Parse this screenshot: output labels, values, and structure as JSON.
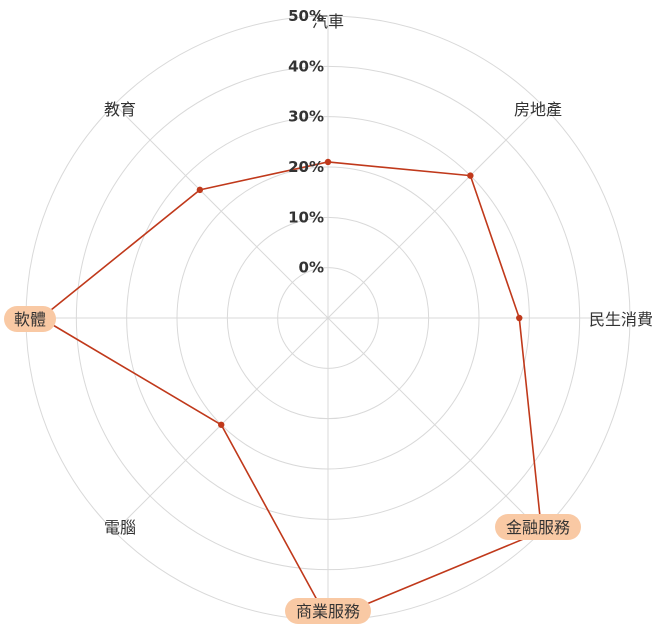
{
  "chart_data": {
    "type": "radar",
    "categories": [
      "汽車",
      "房地產",
      "民生消費",
      "金融服務",
      "商業服務",
      "電腦",
      "軟體",
      "教育"
    ],
    "series": [
      {
        "values": [
          0.21,
          0.3,
          0.28,
          0.5,
          0.5,
          0.2,
          0.47,
          0.26
        ]
      }
    ],
    "ticks": [
      "0%",
      "10%",
      "20%",
      "30%",
      "40%",
      "50%"
    ],
    "rlim": [
      -0.1,
      0.5
    ],
    "highlighted_categories": [
      "金融服務",
      "商業服務",
      "軟體"
    ],
    "grid": true,
    "legend": "none",
    "colors": {
      "series": "#c0391b",
      "grid": "#d9d9d9",
      "highlight_bg": "#f9c9a4",
      "text": "#333333"
    }
  }
}
